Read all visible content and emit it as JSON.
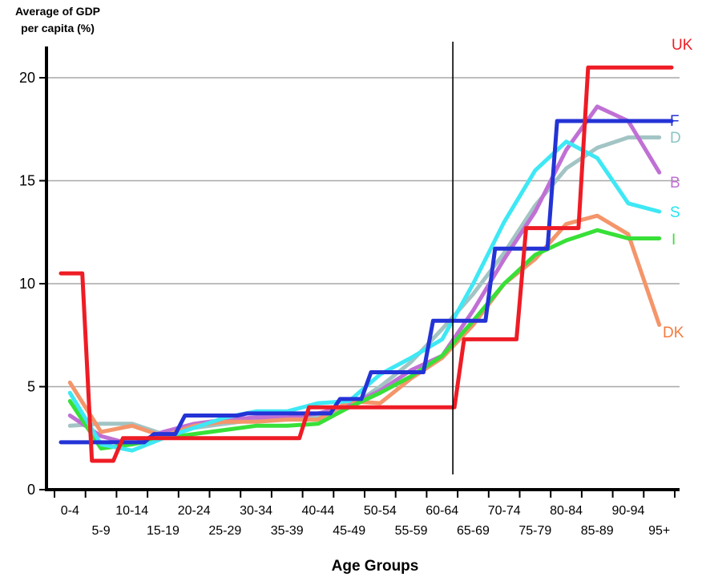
{
  "chart_data": {
    "type": "line",
    "ylabel_line1": "Average of GDP",
    "ylabel_line2": "per capita (%)",
    "xlabel": "Age Groups",
    "ylim": [
      0,
      21
    ],
    "yticks": [
      0,
      5,
      10,
      15,
      20
    ],
    "grid": "horizontal",
    "legend": "labels at right end of lines",
    "reference_line_after": "60-64",
    "categories": [
      "0-4",
      "5-9",
      "10-14",
      "15-19",
      "20-24",
      "25-29",
      "30-34",
      "35-39",
      "40-44",
      "45-49",
      "50-54",
      "55-59",
      "60-64",
      "65-69",
      "70-74",
      "75-79",
      "80-84",
      "85-89",
      "90-94",
      "95+"
    ],
    "series": [
      {
        "name": "UK",
        "color": "#ee1c25",
        "label_color": "#ee1c25",
        "step": true,
        "values": [
          10.5,
          1.4,
          2.5,
          2.5,
          2.5,
          2.5,
          2.5,
          2.5,
          4.0,
          4.0,
          4.0,
          4.0,
          4.0,
          7.3,
          7.3,
          12.7,
          12.7,
          20.5,
          20.5,
          20.5
        ]
      },
      {
        "name": "F",
        "color": "#2433d6",
        "label_color": "#2433d6",
        "step": true,
        "values": [
          2.3,
          2.3,
          2.3,
          2.7,
          3.6,
          3.6,
          3.7,
          3.7,
          3.7,
          4.4,
          5.7,
          5.7,
          8.2,
          8.2,
          11.7,
          11.7,
          17.9,
          17.9,
          17.9,
          17.9
        ]
      },
      {
        "name": "D",
        "color": "#a3c4c4",
        "label_color": "#8cc4c4",
        "step": false,
        "values": [
          3.1,
          3.2,
          3.2,
          2.7,
          3.0,
          3.2,
          3.4,
          3.5,
          3.5,
          4.0,
          5.0,
          6.2,
          7.8,
          9.5,
          11.5,
          13.8,
          15.6,
          16.6,
          17.1,
          17.1
        ]
      },
      {
        "name": "B",
        "color": "#c070d4",
        "label_color": "#c070d4",
        "step": false,
        "values": [
          3.6,
          2.6,
          2.2,
          2.8,
          3.2,
          3.4,
          3.5,
          3.5,
          3.7,
          4.1,
          4.8,
          5.8,
          6.5,
          8.7,
          11.2,
          13.5,
          16.5,
          18.6,
          17.9,
          15.4
        ]
      },
      {
        "name": "S",
        "color": "#3ee8f4",
        "label_color": "#24e4f0",
        "step": false,
        "values": [
          4.7,
          2.2,
          1.9,
          2.5,
          3.0,
          3.5,
          3.8,
          3.8,
          4.2,
          4.3,
          5.6,
          6.4,
          7.3,
          10.0,
          13.0,
          15.5,
          16.9,
          16.1,
          13.9,
          13.5
        ]
      },
      {
        "name": "I",
        "color": "#38e038",
        "label_color": "#38e038",
        "step": false,
        "values": [
          4.3,
          2.0,
          2.2,
          2.5,
          2.7,
          2.9,
          3.1,
          3.1,
          3.2,
          4.0,
          4.7,
          5.5,
          6.5,
          8.2,
          10.0,
          11.4,
          12.1,
          12.6,
          12.2,
          12.2
        ]
      },
      {
        "name": "DK",
        "color": "#f4956a",
        "label_color": "#f47a3c",
        "step": false,
        "values": [
          5.2,
          2.8,
          3.1,
          2.6,
          3.1,
          3.3,
          3.3,
          3.4,
          3.4,
          4.3,
          4.2,
          5.4,
          6.4,
          8.0,
          10.0,
          11.2,
          12.9,
          13.3,
          12.4,
          8.0
        ]
      }
    ]
  }
}
